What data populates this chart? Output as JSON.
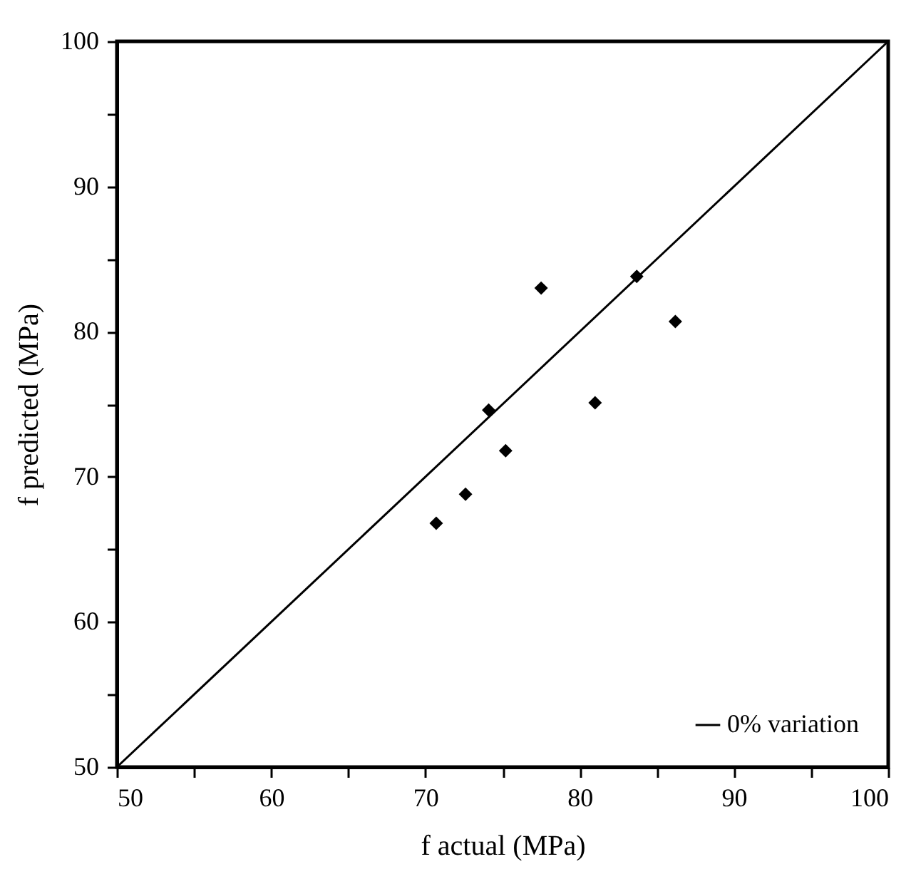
{
  "chart_data": {
    "type": "scatter",
    "xlabel": "f actual (MPa)",
    "ylabel": "f predicted (MPa)",
    "series": [
      {
        "color": "#000000",
        "marker": "diamond",
        "x": [
          70.7,
          72.6,
          74.1,
          75.2,
          77.5,
          81.0,
          83.7,
          86.2
        ],
        "values": [
          66.8,
          68.8,
          74.6,
          71.8,
          83.0,
          75.1,
          83.8,
          80.7
        ]
      },
      {
        "type": "line",
        "name": "0% variation",
        "color": "#000000",
        "marker": "none",
        "line_style": "solid",
        "x": [
          50,
          100
        ],
        "values": [
          50,
          100
        ]
      }
    ],
    "xlim": [
      50,
      100
    ],
    "ylim": [
      50,
      100
    ],
    "xticks": [
      50,
      {
        "value": 55,
        "label": null
      },
      60,
      {
        "value": 65,
        "label": null
      },
      70,
      {
        "value": 75,
        "label": null
      },
      80,
      {
        "value": 85,
        "label": null
      },
      90,
      {
        "value": 95,
        "label": null
      },
      100
    ],
    "yticks": [
      50,
      {
        "value": 55,
        "label": null
      },
      60,
      {
        "value": 65,
        "label": null
      },
      70,
      {
        "value": 75,
        "label": null
      },
      80,
      {
        "value": 85,
        "label": null
      },
      90,
      {
        "value": 95,
        "label": null
      },
      100
    ],
    "grid": false,
    "legend": "bottom right"
  }
}
